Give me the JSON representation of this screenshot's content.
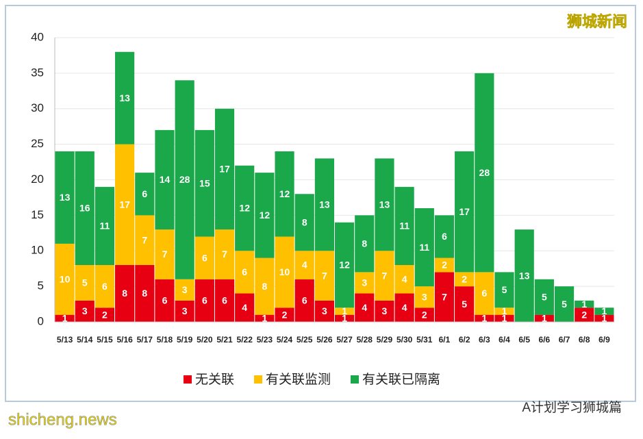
{
  "chart_data": {
    "type": "stacked_bar",
    "categories": [
      "5/13",
      "5/14",
      "5/15",
      "5/16",
      "5/17",
      "5/18",
      "5/19",
      "5/20",
      "5/21",
      "5/22",
      "5/23",
      "5/24",
      "5/25",
      "5/26",
      "5/27",
      "5/28",
      "5/29",
      "5/30",
      "5/31",
      "6/1",
      "6/2",
      "6/3",
      "6/4",
      "6/5",
      "6/6",
      "6/7",
      "6/8",
      "6/9"
    ],
    "series": [
      {
        "name": "无关联",
        "color": "#e60012",
        "values": [
          1,
          3,
          2,
          8,
          8,
          6,
          3,
          6,
          6,
          4,
          1,
          2,
          6,
          3,
          1,
          4,
          3,
          4,
          2,
          7,
          5,
          1,
          1,
          0,
          1,
          0,
          2,
          1
        ]
      },
      {
        "name": "有关联监测",
        "color": "#ffc000",
        "values": [
          10,
          5,
          6,
          17,
          7,
          7,
          3,
          6,
          7,
          6,
          8,
          10,
          4,
          7,
          1,
          3,
          7,
          4,
          3,
          2,
          2,
          6,
          1,
          0,
          0,
          0,
          0,
          0
        ]
      },
      {
        "name": "有关联已隔离",
        "color": "#1aa84a",
        "values": [
          13,
          16,
          11,
          13,
          6,
          14,
          28,
          15,
          17,
          12,
          12,
          12,
          8,
          13,
          12,
          8,
          13,
          11,
          11,
          6,
          17,
          28,
          5,
          13,
          5,
          5,
          1,
          1
        ]
      }
    ],
    "ylim": [
      0,
      40
    ],
    "yticks": [
      0,
      5,
      10,
      15,
      20,
      25,
      30,
      35,
      40
    ],
    "grid": true,
    "legend": "bottom"
  },
  "watermarks": {
    "top_right": "狮城新闻",
    "bottom_left": "shicheng.news",
    "bottom_right": "A计划学习狮城篇"
  }
}
